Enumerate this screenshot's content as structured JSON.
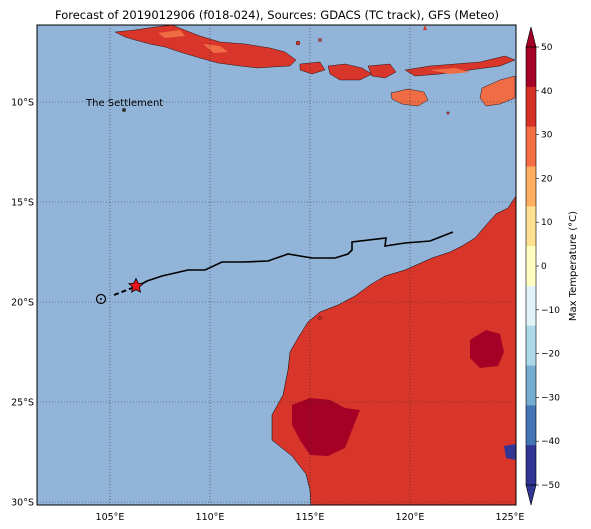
{
  "title": "Forecast of 2019012906 (f018-024), Sources: GDACS (TC track), GFS (Meteo)",
  "map": {
    "ocean_color": "#92b4d9",
    "land_color": "#d8362a",
    "hot_color": "#a50026",
    "warm_color": "#f06c44",
    "lon_ticks": [
      "105°E",
      "110°E",
      "115°E",
      "120°E",
      "125°E"
    ],
    "lat_ticks": [
      "10°S",
      "15°S",
      "20°S",
      "25°S",
      "30°S"
    ],
    "place_label": "The Settlement"
  },
  "track": {
    "line_color": "#000000",
    "marker_color": "#e8131b",
    "marker_icon": "star-icon",
    "origin_icon": "circle-icon"
  },
  "colorbar": {
    "label": "Max Temperature (°C)",
    "ticks": [
      "50",
      "40",
      "30",
      "20",
      "10",
      "0",
      "−10",
      "−20",
      "−30",
      "−40",
      "−50"
    ],
    "colors": [
      "#a50026",
      "#d73027",
      "#f46d43",
      "#fdae61",
      "#fee090",
      "#ffffbf",
      "#e0f3f8",
      "#abd9e9",
      "#74add1",
      "#4575b4",
      "#313695"
    ]
  }
}
